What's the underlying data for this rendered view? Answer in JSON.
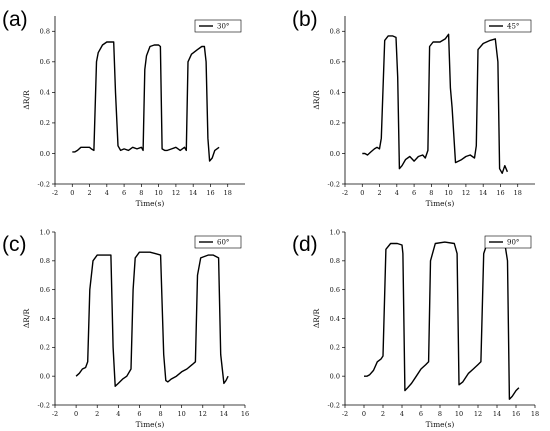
{
  "chart_data": [
    {
      "type": "line",
      "panel_label": "(a)",
      "xlabel": "Time(s)",
      "ylabel": "ΔR/R",
      "xlim": [
        -2,
        20
      ],
      "ylim": [
        -0.2,
        0.9
      ],
      "xticks": [
        -2,
        0,
        2,
        4,
        6,
        8,
        10,
        12,
        14,
        16,
        18
      ],
      "yticks": [
        -0.2,
        0.0,
        0.2,
        0.4,
        0.6,
        0.8
      ],
      "ytick_labels": [
        "-0.2",
        "0.0",
        "0.2",
        "0.4",
        "0.6",
        "0.8"
      ],
      "legend_position": "top-right",
      "series": [
        {
          "name": "30°",
          "x": [
            0,
            0.3,
            0.6,
            1.0,
            1.5,
            2.0,
            2.2,
            2.5,
            2.8,
            3.0,
            3.5,
            4.0,
            4.5,
            4.8,
            5.0,
            5.3,
            5.6,
            6.0,
            6.5,
            7.0,
            7.5,
            8.0,
            8.2,
            8.4,
            8.6,
            9.0,
            9.5,
            10.0,
            10.2,
            10.4,
            10.7,
            11.0,
            11.5,
            12.0,
            12.5,
            13.0,
            13.2,
            13.4,
            13.8,
            14.5,
            15.0,
            15.3,
            15.5,
            15.7,
            15.9,
            16.2,
            16.5,
            17.0
          ],
          "y": [
            0.01,
            0.01,
            0.02,
            0.04,
            0.04,
            0.04,
            0.03,
            0.02,
            0.6,
            0.66,
            0.71,
            0.73,
            0.73,
            0.73,
            0.4,
            0.05,
            0.02,
            0.03,
            0.02,
            0.04,
            0.03,
            0.04,
            0.02,
            0.55,
            0.64,
            0.7,
            0.71,
            0.71,
            0.7,
            0.03,
            0.02,
            0.02,
            0.03,
            0.04,
            0.02,
            0.04,
            0.02,
            0.6,
            0.65,
            0.68,
            0.7,
            0.7,
            0.6,
            0.1,
            -0.05,
            -0.03,
            0.02,
            0.04
          ]
        }
      ]
    },
    {
      "type": "line",
      "panel_label": "(b)",
      "xlabel": "Time(s)",
      "ylabel": "ΔR/R",
      "xlim": [
        -2,
        20
      ],
      "ylim": [
        -0.2,
        0.9
      ],
      "xticks": [
        -2,
        0,
        2,
        4,
        6,
        8,
        10,
        12,
        14,
        16,
        18
      ],
      "yticks": [
        -0.2,
        0.0,
        0.2,
        0.4,
        0.6,
        0.8
      ],
      "ytick_labels": [
        "-0.2",
        "0.0",
        "0.2",
        "0.4",
        "0.6",
        "0.8"
      ],
      "legend_position": "top-right",
      "series": [
        {
          "name": "45°",
          "x": [
            0,
            0.3,
            0.6,
            1.0,
            1.4,
            1.7,
            2.0,
            2.2,
            2.6,
            3.0,
            3.5,
            3.9,
            4.1,
            4.3,
            4.6,
            5.0,
            5.5,
            6.0,
            6.5,
            7.0,
            7.3,
            7.6,
            7.8,
            8.2,
            9.0,
            9.6,
            10.0,
            10.2,
            10.4,
            10.8,
            11.5,
            12.0,
            12.5,
            13.0,
            13.2,
            13.4,
            14.0,
            14.8,
            15.4,
            15.7,
            15.9,
            16.2,
            16.5,
            16.8
          ],
          "y": [
            0.0,
            0.0,
            -0.01,
            0.01,
            0.03,
            0.04,
            0.03,
            0.1,
            0.74,
            0.77,
            0.77,
            0.76,
            0.5,
            -0.1,
            -0.08,
            -0.04,
            -0.02,
            -0.05,
            -0.02,
            -0.01,
            -0.03,
            0.02,
            0.7,
            0.73,
            0.73,
            0.75,
            0.78,
            0.43,
            0.3,
            -0.06,
            -0.04,
            -0.02,
            -0.01,
            -0.03,
            0.05,
            0.68,
            0.72,
            0.74,
            0.75,
            0.6,
            -0.1,
            -0.13,
            -0.08,
            -0.12
          ]
        }
      ]
    },
    {
      "type": "line",
      "panel_label": "(c)",
      "xlabel": "Time(s)",
      "ylabel": "ΔR/R",
      "xlim": [
        -2,
        16
      ],
      "ylim": [
        -0.2,
        1.0
      ],
      "xticks": [
        -2,
        0,
        2,
        4,
        6,
        8,
        10,
        12,
        14,
        16
      ],
      "yticks": [
        -0.2,
        0.0,
        0.2,
        0.4,
        0.6,
        0.8,
        1.0
      ],
      "ytick_labels": [
        "-0.2",
        "0.0",
        "0.2",
        "0.4",
        "0.6",
        "0.8",
        "1.0"
      ],
      "legend_position": "top-right",
      "series": [
        {
          "name": "60°",
          "x": [
            0,
            0.3,
            0.6,
            0.9,
            1.1,
            1.3,
            1.6,
            2.0,
            2.5,
            3.0,
            3.3,
            3.5,
            3.7,
            4.0,
            4.4,
            4.8,
            5.2,
            5.4,
            5.6,
            6.0,
            6.5,
            7.0,
            7.5,
            8.0,
            8.3,
            8.5,
            8.7,
            9.0,
            9.5,
            10.0,
            10.5,
            11.0,
            11.3,
            11.5,
            11.8,
            12.5,
            13.0,
            13.5,
            13.7,
            14.0,
            14.2,
            14.4
          ],
          "y": [
            0.0,
            0.02,
            0.05,
            0.06,
            0.1,
            0.6,
            0.8,
            0.84,
            0.84,
            0.84,
            0.84,
            0.2,
            -0.07,
            -0.05,
            -0.02,
            0.0,
            0.05,
            0.6,
            0.82,
            0.86,
            0.86,
            0.86,
            0.85,
            0.84,
            0.15,
            -0.03,
            -0.04,
            -0.02,
            0.0,
            0.03,
            0.05,
            0.08,
            0.1,
            0.7,
            0.82,
            0.84,
            0.84,
            0.82,
            0.15,
            -0.05,
            -0.03,
            0.0
          ]
        }
      ]
    },
    {
      "type": "line",
      "panel_label": "(d)",
      "xlabel": "Time(s)",
      "ylabel": "ΔR/R",
      "xlim": [
        -2,
        18
      ],
      "ylim": [
        -0.2,
        1.0
      ],
      "xticks": [
        -2,
        0,
        2,
        4,
        6,
        8,
        10,
        12,
        14,
        16,
        18
      ],
      "yticks": [
        -0.2,
        0.0,
        0.2,
        0.4,
        0.6,
        0.8,
        1.0
      ],
      "ytick_labels": [
        "-0.2",
        "0.0",
        "0.2",
        "0.4",
        "0.6",
        "0.8",
        "1.0"
      ],
      "legend_position": "top-right",
      "series": [
        {
          "name": "90°",
          "x": [
            0,
            0.3,
            0.6,
            1.0,
            1.4,
            1.8,
            2.0,
            2.3,
            2.8,
            3.5,
            4.0,
            4.1,
            4.3,
            4.6,
            5.0,
            5.5,
            6.0,
            6.5,
            6.8,
            7.0,
            7.5,
            8.5,
            9.5,
            9.8,
            10.0,
            10.4,
            11.0,
            11.5,
            12.0,
            12.3,
            12.6,
            13.0,
            14.0,
            14.8,
            15.1,
            15.3,
            15.6,
            16.0,
            16.3
          ],
          "y": [
            0.0,
            0.0,
            0.01,
            0.04,
            0.1,
            0.12,
            0.14,
            0.88,
            0.92,
            0.92,
            0.91,
            0.85,
            -0.1,
            -0.08,
            -0.05,
            0.0,
            0.05,
            0.08,
            0.1,
            0.8,
            0.92,
            0.93,
            0.92,
            0.85,
            -0.06,
            -0.04,
            0.02,
            0.05,
            0.08,
            0.1,
            0.85,
            0.93,
            0.94,
            0.93,
            0.8,
            -0.16,
            -0.14,
            -0.1,
            -0.08
          ]
        }
      ]
    }
  ]
}
